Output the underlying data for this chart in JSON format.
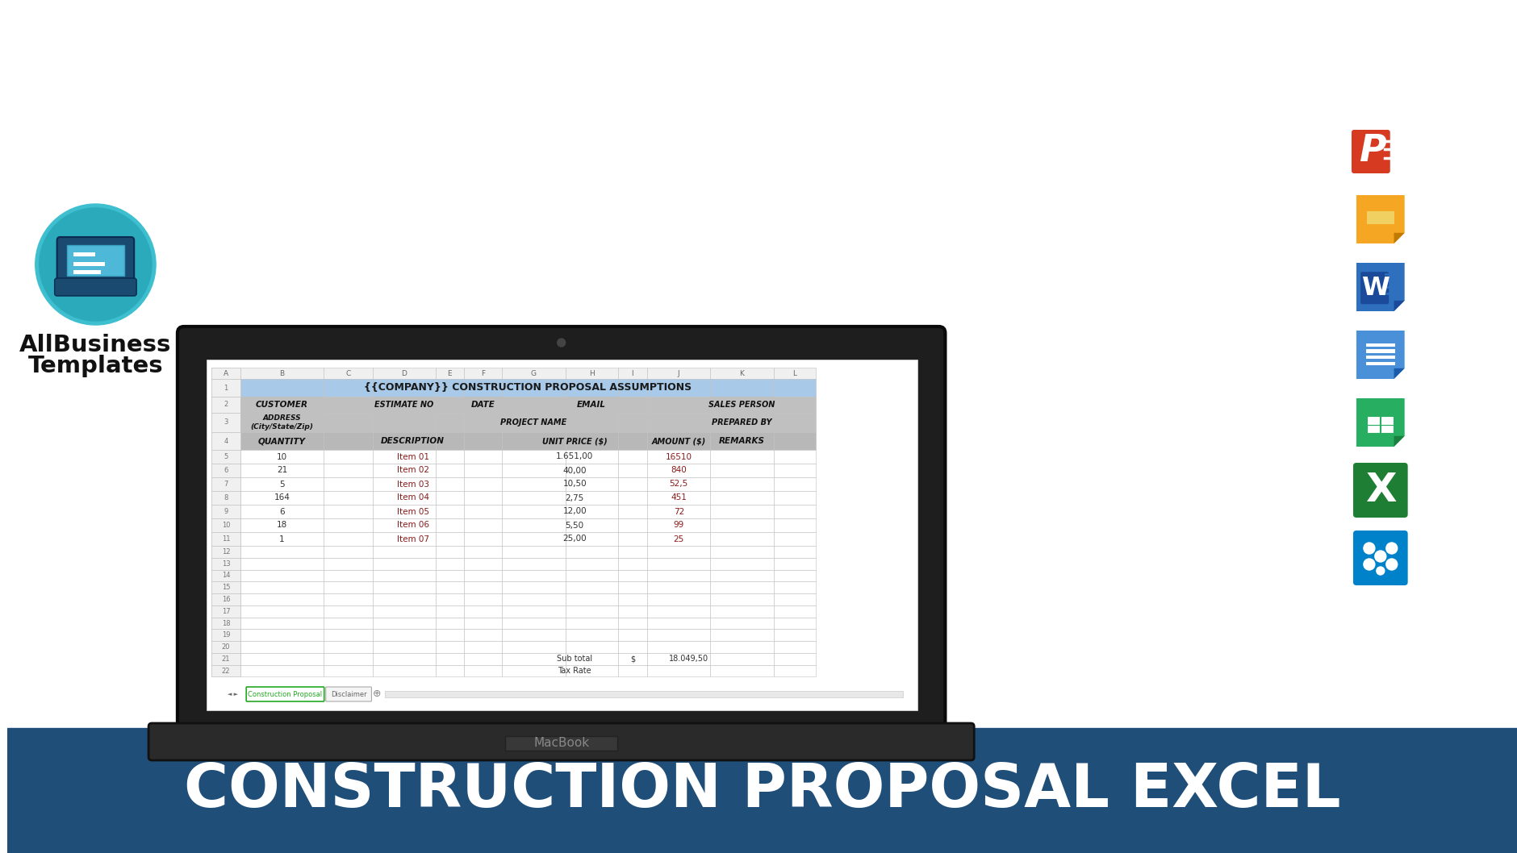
{
  "bg_color": "#ffffff",
  "bottom_bar_color": "#1f4e79",
  "bottom_bar_text": "CONSTRUCTION PROPOSAL EXCEL",
  "spreadsheet_title": "{{COMPANY}} CONSTRUCTION PROPOSAL ASSUMPTIONS",
  "spreadsheet_title_bg": "#a8c9e8",
  "header_bg": "#b0b0b0",
  "col_labels": [
    "A",
    "B",
    "C",
    "D",
    "E",
    "F",
    "G",
    "H",
    "I",
    "J",
    "K",
    "L"
  ],
  "items": [
    {
      "qty": "10",
      "desc": "Item 01",
      "unit_price": "1.651,00",
      "amount": "16510"
    },
    {
      "qty": "21",
      "desc": "Item 02",
      "unit_price": "40,00",
      "amount": "840"
    },
    {
      "qty": "5",
      "desc": "Item 03",
      "unit_price": "10,50",
      "amount": "52,5"
    },
    {
      "qty": "164",
      "desc": "Item 04",
      "unit_price": "2,75",
      "amount": "451"
    },
    {
      "qty": "6",
      "desc": "Item 05",
      "unit_price": "12,00",
      "amount": "72"
    },
    {
      "qty": "18",
      "desc": "Item 06",
      "unit_price": "5,50",
      "amount": "99"
    },
    {
      "qty": "1",
      "desc": "Item 07",
      "unit_price": "25,00",
      "amount": "25"
    }
  ],
  "subtotal_label": "Sub total",
  "subtotal_dollar": "$",
  "subtotal_value": "18.049,50",
  "taxrate_label": "Tax Rate",
  "sheet_tab1": "Construction Proposal",
  "sheet_tab2": "Disclaimer",
  "macbook_text": "MacBook",
  "allbusiness_line1": "AllBusiness",
  "allbusiness_line2": "Templates",
  "item_desc_color": "#8b1a1a",
  "item_amount_color": "#8b1a1a"
}
